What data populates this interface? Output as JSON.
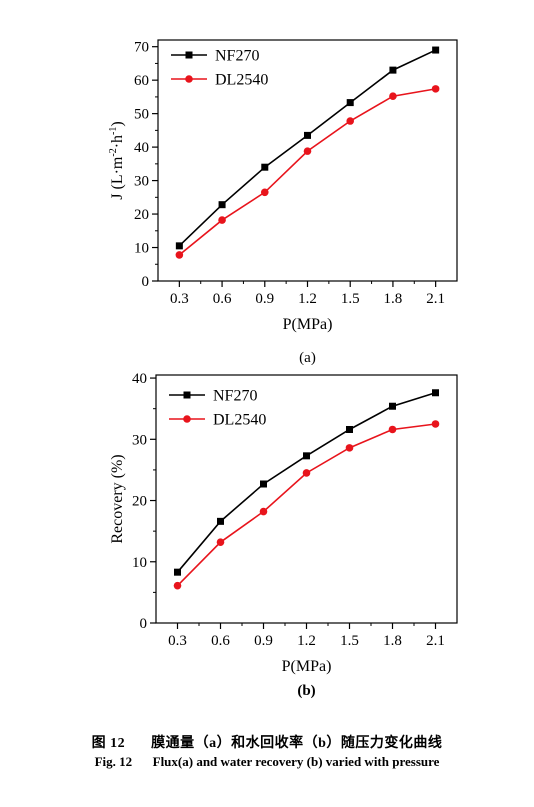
{
  "chart_data": [
    {
      "type": "line",
      "panel_label": "(a)",
      "x": [
        0.3,
        0.6,
        0.9,
        1.2,
        1.5,
        1.8,
        2.1
      ],
      "x_tick_labels": [
        "0.3",
        "0.6",
        "0.9",
        "1.2",
        "1.5",
        "1.8",
        "2.1"
      ],
      "y_ticks": [
        0,
        10,
        20,
        30,
        40,
        50,
        60,
        70
      ],
      "ylim": [
        0,
        72
      ],
      "xlabel": "P(MPa)",
      "ylabel": {
        "base": "J (L·m",
        "sup1": "-2",
        "mid": "·h",
        "sup2": "-1",
        "end": ")"
      },
      "legend_position": "top-left",
      "grid": false,
      "series": [
        {
          "name": "NF270",
          "color": "#000000",
          "marker": "square",
          "values": [
            10.5,
            22.8,
            34.0,
            43.5,
            53.3,
            63.0,
            69.0
          ]
        },
        {
          "name": "DL2540",
          "color": "#e8141c",
          "marker": "circle",
          "values": [
            7.8,
            18.2,
            26.5,
            38.8,
            47.8,
            55.2,
            57.4
          ]
        }
      ]
    },
    {
      "type": "line",
      "panel_label": "(b)",
      "x": [
        0.3,
        0.6,
        0.9,
        1.2,
        1.5,
        1.8,
        2.1
      ],
      "x_tick_labels": [
        "0.3",
        "0.6",
        "0.9",
        "1.2",
        "1.5",
        "1.8",
        "2.1"
      ],
      "y_ticks": [
        0,
        10,
        20,
        30,
        40
      ],
      "ylim": [
        0,
        40.5
      ],
      "xlabel": "P(MPa)",
      "ylabel": "Recovery (%)",
      "legend_position": "top-left",
      "grid": false,
      "series": [
        {
          "name": "NF270",
          "color": "#000000",
          "marker": "square",
          "values": [
            8.3,
            16.6,
            22.7,
            27.3,
            31.6,
            35.4,
            37.6
          ]
        },
        {
          "name": "DL2540",
          "color": "#e8141c",
          "marker": "circle",
          "values": [
            6.1,
            13.2,
            18.2,
            24.5,
            28.6,
            31.6,
            32.5
          ]
        }
      ]
    }
  ],
  "caption": {
    "cn_fig": "图 12",
    "cn_text": "膜通量（a）和水回收率（b）随压力变化曲线",
    "en_fig": "Fig. 12",
    "en_text": "Flux(a) and water recovery (b) varied with pressure"
  }
}
